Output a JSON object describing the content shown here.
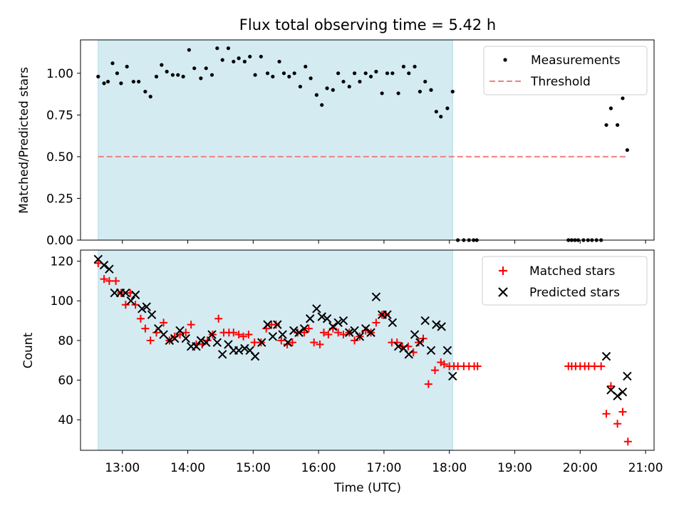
{
  "chart_data": {
    "title": "Flux total observing time = 5.42 h",
    "xlabel": "Time (UTC)",
    "xlim_hours": [
      12.36,
      21.13
    ],
    "xticks": [
      {
        "value": 13,
        "label": "13:00"
      },
      {
        "value": 14,
        "label": "14:00"
      },
      {
        "value": 15,
        "label": "15:00"
      },
      {
        "value": 16,
        "label": "16:00"
      },
      {
        "value": 17,
        "label": "17:00"
      },
      {
        "value": 18,
        "label": "18:00"
      },
      {
        "value": 19,
        "label": "19:00"
      },
      {
        "value": 20,
        "label": "20:00"
      },
      {
        "value": 21,
        "label": "21:00"
      }
    ],
    "shaded_span": {
      "start": 12.63,
      "end": 18.05,
      "color": "#add8e6"
    },
    "panels": [
      {
        "type": "scatter",
        "ylabel": "Matched/Predicted stars",
        "ylim": [
          0,
          1.2
        ],
        "yticks": [
          {
            "value": 0.0,
            "label": "0.00"
          },
          {
            "value": 0.25,
            "label": "0.25"
          },
          {
            "value": 0.5,
            "label": "0.50"
          },
          {
            "value": 0.75,
            "label": "0.75"
          },
          {
            "value": 1.0,
            "label": "1.00"
          }
        ],
        "legend": {
          "position": "top-right",
          "entries": [
            "Measurements",
            "Threshold"
          ]
        },
        "threshold": {
          "value": 0.5,
          "x": [
            12.63,
            20.72
          ],
          "color": "#f08080"
        },
        "series": [
          {
            "name": "Measurements",
            "marker": "dot",
            "color": "#000000",
            "x": [
              12.63,
              12.72,
              12.78,
              12.85,
              12.92,
              12.98,
              13.07,
              13.17,
              13.25,
              13.35,
              13.43,
              13.52,
              13.6,
              13.68,
              13.77,
              13.85,
              13.93,
              14.02,
              14.1,
              14.2,
              14.28,
              14.37,
              14.45,
              14.53,
              14.62,
              14.7,
              14.78,
              14.87,
              14.95,
              15.03,
              15.12,
              15.22,
              15.3,
              15.4,
              15.47,
              15.55,
              15.63,
              15.72,
              15.8,
              15.88,
              15.97,
              16.05,
              16.13,
              16.22,
              16.3,
              16.38,
              16.47,
              16.55,
              16.63,
              16.72,
              16.8,
              16.88,
              16.97,
              17.05,
              17.13,
              17.22,
              17.3,
              17.38,
              17.47,
              17.55,
              17.63,
              17.72,
              17.8,
              17.87,
              17.97,
              18.05,
              18.13,
              18.22,
              18.3,
              18.37,
              18.42,
              19.82,
              19.87,
              19.92,
              19.97,
              20.05,
              20.12,
              20.18,
              20.25,
              20.32,
              20.4,
              20.47,
              20.57,
              20.65,
              20.72
            ],
            "y": [
              0.98,
              0.94,
              0.95,
              1.06,
              1.0,
              0.94,
              1.04,
              0.95,
              0.95,
              0.89,
              0.86,
              0.98,
              1.05,
              1.01,
              0.99,
              0.99,
              0.98,
              1.14,
              1.03,
              0.97,
              1.03,
              0.99,
              1.15,
              1.08,
              1.15,
              1.07,
              1.09,
              1.07,
              1.1,
              0.99,
              1.1,
              1.0,
              0.98,
              1.07,
              1.0,
              0.98,
              1.0,
              0.92,
              1.04,
              0.97,
              0.87,
              0.81,
              0.91,
              0.9,
              1.0,
              0.95,
              0.92,
              1.0,
              0.95,
              1.0,
              0.98,
              1.01,
              0.88,
              1.0,
              1.0,
              0.88,
              1.04,
              1.0,
              1.04,
              0.89,
              0.95,
              0.9,
              0.77,
              0.74,
              0.79,
              0.89,
              0.0,
              0.0,
              0.0,
              0.0,
              0.0,
              0.0,
              0.0,
              0.0,
              0.0,
              0.0,
              0.0,
              0.0,
              0.0,
              0.0,
              0.69,
              0.79,
              0.69,
              0.85,
              0.54
            ]
          }
        ]
      },
      {
        "type": "scatter",
        "ylabel": "Count",
        "ylim": [
          24.6,
          125.6
        ],
        "yticks": [
          {
            "value": 40,
            "label": "40"
          },
          {
            "value": 60,
            "label": "60"
          },
          {
            "value": 80,
            "label": "80"
          },
          {
            "value": 100,
            "label": "100"
          },
          {
            "value": 120,
            "label": "120"
          }
        ],
        "legend": {
          "position": "top-right",
          "entries": [
            "Matched stars",
            "Predicted stars"
          ]
        },
        "series": [
          {
            "name": "Matched stars",
            "marker": "plus",
            "color": "#ff0000",
            "x": [
              12.63,
              12.72,
              12.8,
              12.9,
              12.98,
              13.05,
              13.12,
              13.2,
              13.28,
              13.35,
              13.43,
              13.52,
              13.63,
              13.72,
              13.8,
              13.88,
              13.97,
              14.05,
              14.13,
              14.22,
              14.3,
              14.38,
              14.47,
              14.55,
              14.63,
              14.7,
              14.78,
              14.85,
              14.93,
              15.02,
              15.12,
              15.2,
              15.28,
              15.35,
              15.43,
              15.52,
              15.6,
              15.68,
              15.78,
              15.85,
              15.93,
              16.02,
              16.08,
              16.15,
              16.22,
              16.3,
              16.38,
              16.47,
              16.55,
              16.63,
              16.72,
              16.8,
              16.88,
              16.97,
              17.03,
              17.12,
              17.2,
              17.28,
              17.37,
              17.45,
              17.53,
              17.6,
              17.68,
              17.78,
              17.87,
              17.92,
              18.0,
              18.07,
              18.13,
              18.22,
              18.3,
              18.38,
              18.43,
              19.82,
              19.87,
              19.93,
              20.0,
              20.07,
              20.13,
              20.22,
              20.32,
              20.4,
              20.47,
              20.57,
              20.65,
              20.73
            ],
            "y": [
              119,
              111,
              110,
              110,
              104,
              98,
              104,
              98,
              91,
              86,
              80,
              84,
              89,
              80,
              82,
              83,
              84,
              88,
              78,
              78,
              80,
              83,
              91,
              84,
              84,
              84,
              83,
              82,
              83,
              79,
              79,
              86,
              88,
              88,
              80,
              78,
              79,
              84,
              84,
              86,
              79,
              78,
              84,
              83,
              86,
              84,
              83,
              84,
              80,
              82,
              85,
              84,
              89,
              93,
              93,
              79,
              79,
              77,
              77,
              74,
              79,
              81,
              58,
              65,
              69,
              68,
              67,
              67,
              67,
              67,
              67,
              67,
              67,
              67,
              67,
              67,
              67,
              67,
              67,
              67,
              67,
              43,
              57,
              38,
              44,
              29
            ]
          },
          {
            "name": "Predicted stars",
            "marker": "x",
            "color": "#000000",
            "x": [
              12.63,
              12.72,
              12.8,
              12.88,
              12.97,
              13.05,
              13.13,
              13.2,
              13.3,
              13.37,
              13.45,
              13.55,
              13.63,
              13.72,
              13.8,
              13.88,
              13.97,
              14.05,
              14.13,
              14.2,
              14.28,
              14.37,
              14.45,
              14.53,
              14.62,
              14.7,
              14.78,
              14.87,
              14.95,
              15.03,
              15.13,
              15.22,
              15.3,
              15.37,
              15.45,
              15.53,
              15.62,
              15.7,
              15.78,
              15.87,
              15.97,
              16.05,
              16.13,
              16.22,
              16.3,
              16.38,
              16.47,
              16.55,
              16.63,
              16.72,
              16.8,
              16.88,
              16.97,
              17.05,
              17.13,
              17.22,
              17.3,
              17.38,
              17.47,
              17.55,
              17.63,
              17.72,
              17.8,
              17.88,
              17.97,
              18.05,
              20.4,
              20.47,
              20.57,
              20.65,
              20.72
            ],
            "y": [
              121,
              118,
              116,
              104,
              104,
              104,
              100,
              103,
              96,
              97,
              93,
              86,
              83,
              80,
              81,
              85,
              81,
              77,
              77,
              80,
              79,
              83,
              79,
              73,
              78,
              75,
              75,
              76,
              75,
              72,
              79,
              88,
              82,
              88,
              83,
              79,
              85,
              84,
              86,
              91,
              96,
              92,
              91,
              87,
              89,
              90,
              84,
              85,
              82,
              86,
              84,
              102,
              93,
              93,
              89,
              77,
              76,
              73,
              83,
              79,
              90,
              75,
              88,
              87,
              75,
              62,
              72,
              55,
              52,
              54,
              62
            ]
          }
        ]
      }
    ]
  }
}
